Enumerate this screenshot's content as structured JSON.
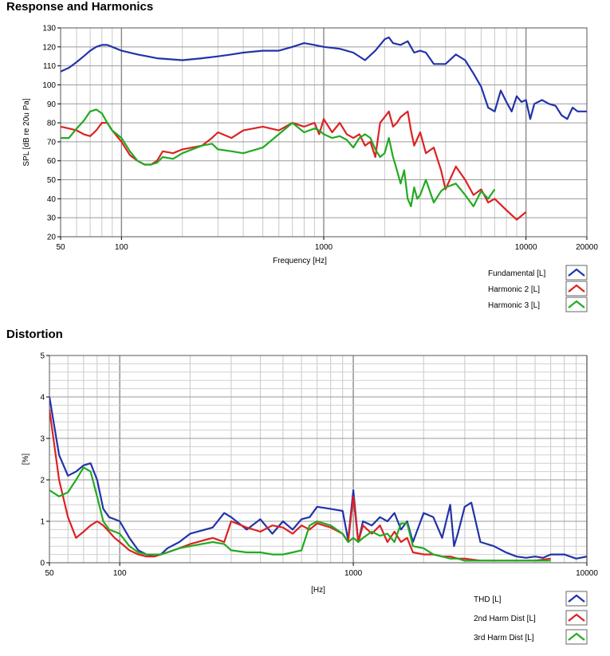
{
  "chart_data": [
    {
      "type": "line",
      "title": "Response and Harmonics",
      "xlabel": "Frequency [Hz]",
      "ylabel": "SPL [dB re 20u Pa]",
      "xscale": "log",
      "xlim": [
        50,
        20000
      ],
      "ylim": [
        20,
        130
      ],
      "xticks": [
        50,
        100,
        1000,
        10000,
        20000
      ],
      "xtick_labels": [
        "50",
        "100",
        "1000",
        "10000",
        "20000"
      ],
      "yticks": [
        20,
        30,
        40,
        50,
        60,
        70,
        80,
        90,
        100,
        110,
        120,
        130
      ],
      "ytick_labels": [
        "20",
        "30",
        "40",
        "50",
        "60",
        "70",
        "80",
        "90",
        "100",
        "110",
        "120",
        "130"
      ],
      "grid": true,
      "legend_position": "bottom-right",
      "series": [
        {
          "name": "Fundamental [L]",
          "color": "#2233aa",
          "x": [
            50,
            55,
            60,
            65,
            70,
            75,
            80,
            85,
            90,
            100,
            120,
            150,
            200,
            250,
            300,
            350,
            400,
            500,
            600,
            700,
            800,
            900,
            1000,
            1200,
            1400,
            1600,
            1800,
            2000,
            2100,
            2200,
            2400,
            2600,
            2800,
            3000,
            3200,
            3500,
            4000,
            4500,
            5000,
            5500,
            6000,
            6500,
            7000,
            7500,
            8000,
            8500,
            9000,
            9500,
            10000,
            10500,
            11000,
            12000,
            13000,
            14000,
            15000,
            16000,
            17000,
            18000,
            19000,
            20000
          ],
          "y": [
            107,
            109,
            112,
            115,
            118,
            120,
            121,
            121,
            120,
            118,
            116,
            114,
            113,
            114,
            115,
            116,
            117,
            118,
            118,
            120,
            122,
            121,
            120,
            119,
            117,
            113,
            118,
            124,
            125,
            122,
            121,
            123,
            117,
            118,
            117,
            111,
            111,
            116,
            113,
            106,
            99,
            88,
            86,
            97,
            91,
            86,
            94,
            91,
            92,
            82,
            90,
            92,
            90,
            89,
            84,
            82,
            88,
            86,
            86,
            86
          ]
        },
        {
          "name": "Harmonic 2 [L]",
          "color": "#dd2222",
          "x": [
            50,
            55,
            60,
            65,
            70,
            75,
            80,
            85,
            90,
            100,
            110,
            120,
            130,
            140,
            150,
            160,
            180,
            200,
            250,
            280,
            300,
            350,
            400,
            500,
            600,
            700,
            800,
            900,
            950,
            1000,
            1100,
            1200,
            1300,
            1400,
            1500,
            1600,
            1700,
            1800,
            1900,
            2000,
            2100,
            2200,
            2300,
            2400,
            2600,
            2700,
            2800,
            3000,
            3200,
            3500,
            3800,
            4000,
            4500,
            5000,
            5500,
            6000,
            6500,
            7000,
            8000,
            9000,
            10000
          ],
          "y": [
            78,
            77,
            76,
            74,
            73,
            76,
            80,
            80,
            76,
            70,
            63,
            60,
            58,
            58,
            60,
            65,
            64,
            66,
            68,
            72,
            75,
            72,
            76,
            78,
            76,
            80,
            78,
            80,
            74,
            82,
            75,
            80,
            74,
            72,
            74,
            68,
            70,
            62,
            80,
            83,
            86,
            78,
            80,
            83,
            86,
            76,
            68,
            75,
            64,
            67,
            55,
            45,
            57,
            50,
            42,
            45,
            38,
            40,
            34,
            29,
            33
          ]
        },
        {
          "name": "Harmonic 3 [L]",
          "color": "#22aa22",
          "x": [
            50,
            55,
            60,
            65,
            70,
            75,
            80,
            85,
            90,
            100,
            110,
            120,
            130,
            140,
            150,
            160,
            180,
            200,
            250,
            280,
            300,
            350,
            400,
            500,
            600,
            700,
            800,
            900,
            950,
            1000,
            1100,
            1200,
            1300,
            1400,
            1500,
            1600,
            1700,
            1800,
            1900,
            2000,
            2100,
            2200,
            2300,
            2400,
            2500,
            2600,
            2700,
            2800,
            2900,
            3000,
            3200,
            3500,
            3800,
            4000,
            4500,
            5000,
            5500,
            6000,
            6500,
            7000
          ],
          "y": [
            72,
            72,
            77,
            81,
            86,
            87,
            85,
            80,
            76,
            72,
            65,
            60,
            58,
            58,
            59,
            62,
            61,
            64,
            68,
            69,
            66,
            65,
            64,
            67,
            74,
            80,
            75,
            77,
            76,
            74,
            72,
            73,
            71,
            67,
            72,
            74,
            72,
            66,
            62,
            64,
            72,
            62,
            55,
            48,
            55,
            40,
            36,
            46,
            40,
            42,
            50,
            38,
            44,
            46,
            48,
            42,
            36,
            44,
            40,
            45
          ]
        }
      ]
    },
    {
      "type": "line",
      "title": "Distortion",
      "xlabel": "[Hz]",
      "ylabel": "[%]",
      "xscale": "log",
      "xlim": [
        50,
        10000
      ],
      "ylim": [
        0,
        5
      ],
      "xticks": [
        50,
        100,
        1000,
        10000
      ],
      "xtick_labels": [
        "50",
        "100",
        "1000",
        "10000"
      ],
      "yticks": [
        0,
        1,
        2,
        3,
        4,
        5
      ],
      "ytick_labels": [
        "0",
        "1",
        "2",
        "3",
        "4",
        "5"
      ],
      "grid": true,
      "legend_position": "bottom-right",
      "series": [
        {
          "name": "THD [L]",
          "color": "#2233aa",
          "x": [
            50,
            55,
            60,
            65,
            70,
            75,
            80,
            85,
            90,
            95,
            100,
            110,
            120,
            130,
            140,
            150,
            160,
            180,
            200,
            250,
            280,
            300,
            350,
            400,
            450,
            500,
            550,
            600,
            650,
            700,
            800,
            900,
            950,
            1000,
            1050,
            1100,
            1200,
            1300,
            1400,
            1500,
            1600,
            1700,
            1800,
            2000,
            2200,
            2400,
            2600,
            2700,
            2800,
            3000,
            3200,
            3500,
            4000,
            4500,
            5000,
            5500,
            6000,
            6500,
            7000,
            8000,
            9000,
            10000
          ],
          "y": [
            4.0,
            2.6,
            2.1,
            2.2,
            2.35,
            2.4,
            2.0,
            1.3,
            1.1,
            1.05,
            1.0,
            0.6,
            0.3,
            0.2,
            0.15,
            0.2,
            0.35,
            0.5,
            0.7,
            0.85,
            1.2,
            1.1,
            0.8,
            1.05,
            0.7,
            1.0,
            0.8,
            1.05,
            1.1,
            1.35,
            1.3,
            1.25,
            0.55,
            1.75,
            0.5,
            1.0,
            0.9,
            1.1,
            1.0,
            1.2,
            0.8,
            1.0,
            0.5,
            1.2,
            1.1,
            0.6,
            1.4,
            0.4,
            0.7,
            1.35,
            1.45,
            0.5,
            0.4,
            0.25,
            0.15,
            0.12,
            0.15,
            0.12,
            0.2,
            0.2,
            0.1,
            0.15
          ]
        },
        {
          "name": "2nd Harm Dist [L]",
          "color": "#dd2222",
          "x": [
            50,
            55,
            60,
            65,
            70,
            75,
            80,
            85,
            90,
            95,
            100,
            110,
            120,
            130,
            140,
            150,
            160,
            180,
            200,
            250,
            280,
            300,
            350,
            400,
            450,
            500,
            550,
            600,
            650,
            700,
            800,
            900,
            950,
            1000,
            1050,
            1100,
            1200,
            1300,
            1400,
            1500,
            1600,
            1700,
            1800,
            2000,
            2200,
            2400,
            2600,
            2800,
            3000,
            3500,
            4000,
            5000,
            6000,
            7000
          ],
          "y": [
            3.7,
            2.0,
            1.1,
            0.6,
            0.75,
            0.9,
            1.0,
            0.9,
            0.75,
            0.6,
            0.5,
            0.3,
            0.2,
            0.15,
            0.15,
            0.2,
            0.25,
            0.35,
            0.45,
            0.6,
            0.5,
            1.0,
            0.85,
            0.75,
            0.9,
            0.85,
            0.7,
            0.9,
            0.8,
            0.95,
            0.85,
            0.7,
            0.5,
            1.6,
            0.5,
            0.9,
            0.7,
            0.9,
            0.5,
            0.75,
            0.5,
            0.6,
            0.25,
            0.2,
            0.2,
            0.15,
            0.15,
            0.1,
            0.1,
            0.05,
            0.05,
            0.05,
            0.05,
            0.1
          ]
        },
        {
          "name": "3rd Harm Dist [L]",
          "color": "#22aa22",
          "x": [
            50,
            55,
            60,
            65,
            70,
            75,
            80,
            85,
            90,
            95,
            100,
            110,
            120,
            130,
            140,
            150,
            160,
            180,
            200,
            250,
            280,
            300,
            350,
            400,
            450,
            500,
            550,
            600,
            650,
            700,
            800,
            900,
            950,
            1000,
            1050,
            1100,
            1200,
            1300,
            1400,
            1500,
            1600,
            1700,
            1800,
            2000,
            2200,
            2400,
            2600,
            2800,
            3000,
            3500,
            4000,
            5000,
            6000,
            7000
          ],
          "y": [
            1.75,
            1.6,
            1.7,
            2.0,
            2.3,
            2.2,
            1.6,
            1.0,
            0.8,
            0.75,
            0.7,
            0.4,
            0.25,
            0.2,
            0.2,
            0.2,
            0.25,
            0.35,
            0.4,
            0.5,
            0.45,
            0.3,
            0.25,
            0.25,
            0.2,
            0.2,
            0.25,
            0.3,
            0.9,
            1.0,
            0.9,
            0.7,
            0.5,
            0.6,
            0.5,
            0.6,
            0.75,
            0.65,
            0.7,
            0.5,
            0.95,
            0.95,
            0.4,
            0.35,
            0.2,
            0.15,
            0.1,
            0.1,
            0.05,
            0.05,
            0.05,
            0.05,
            0.05,
            0.05
          ]
        }
      ]
    }
  ]
}
